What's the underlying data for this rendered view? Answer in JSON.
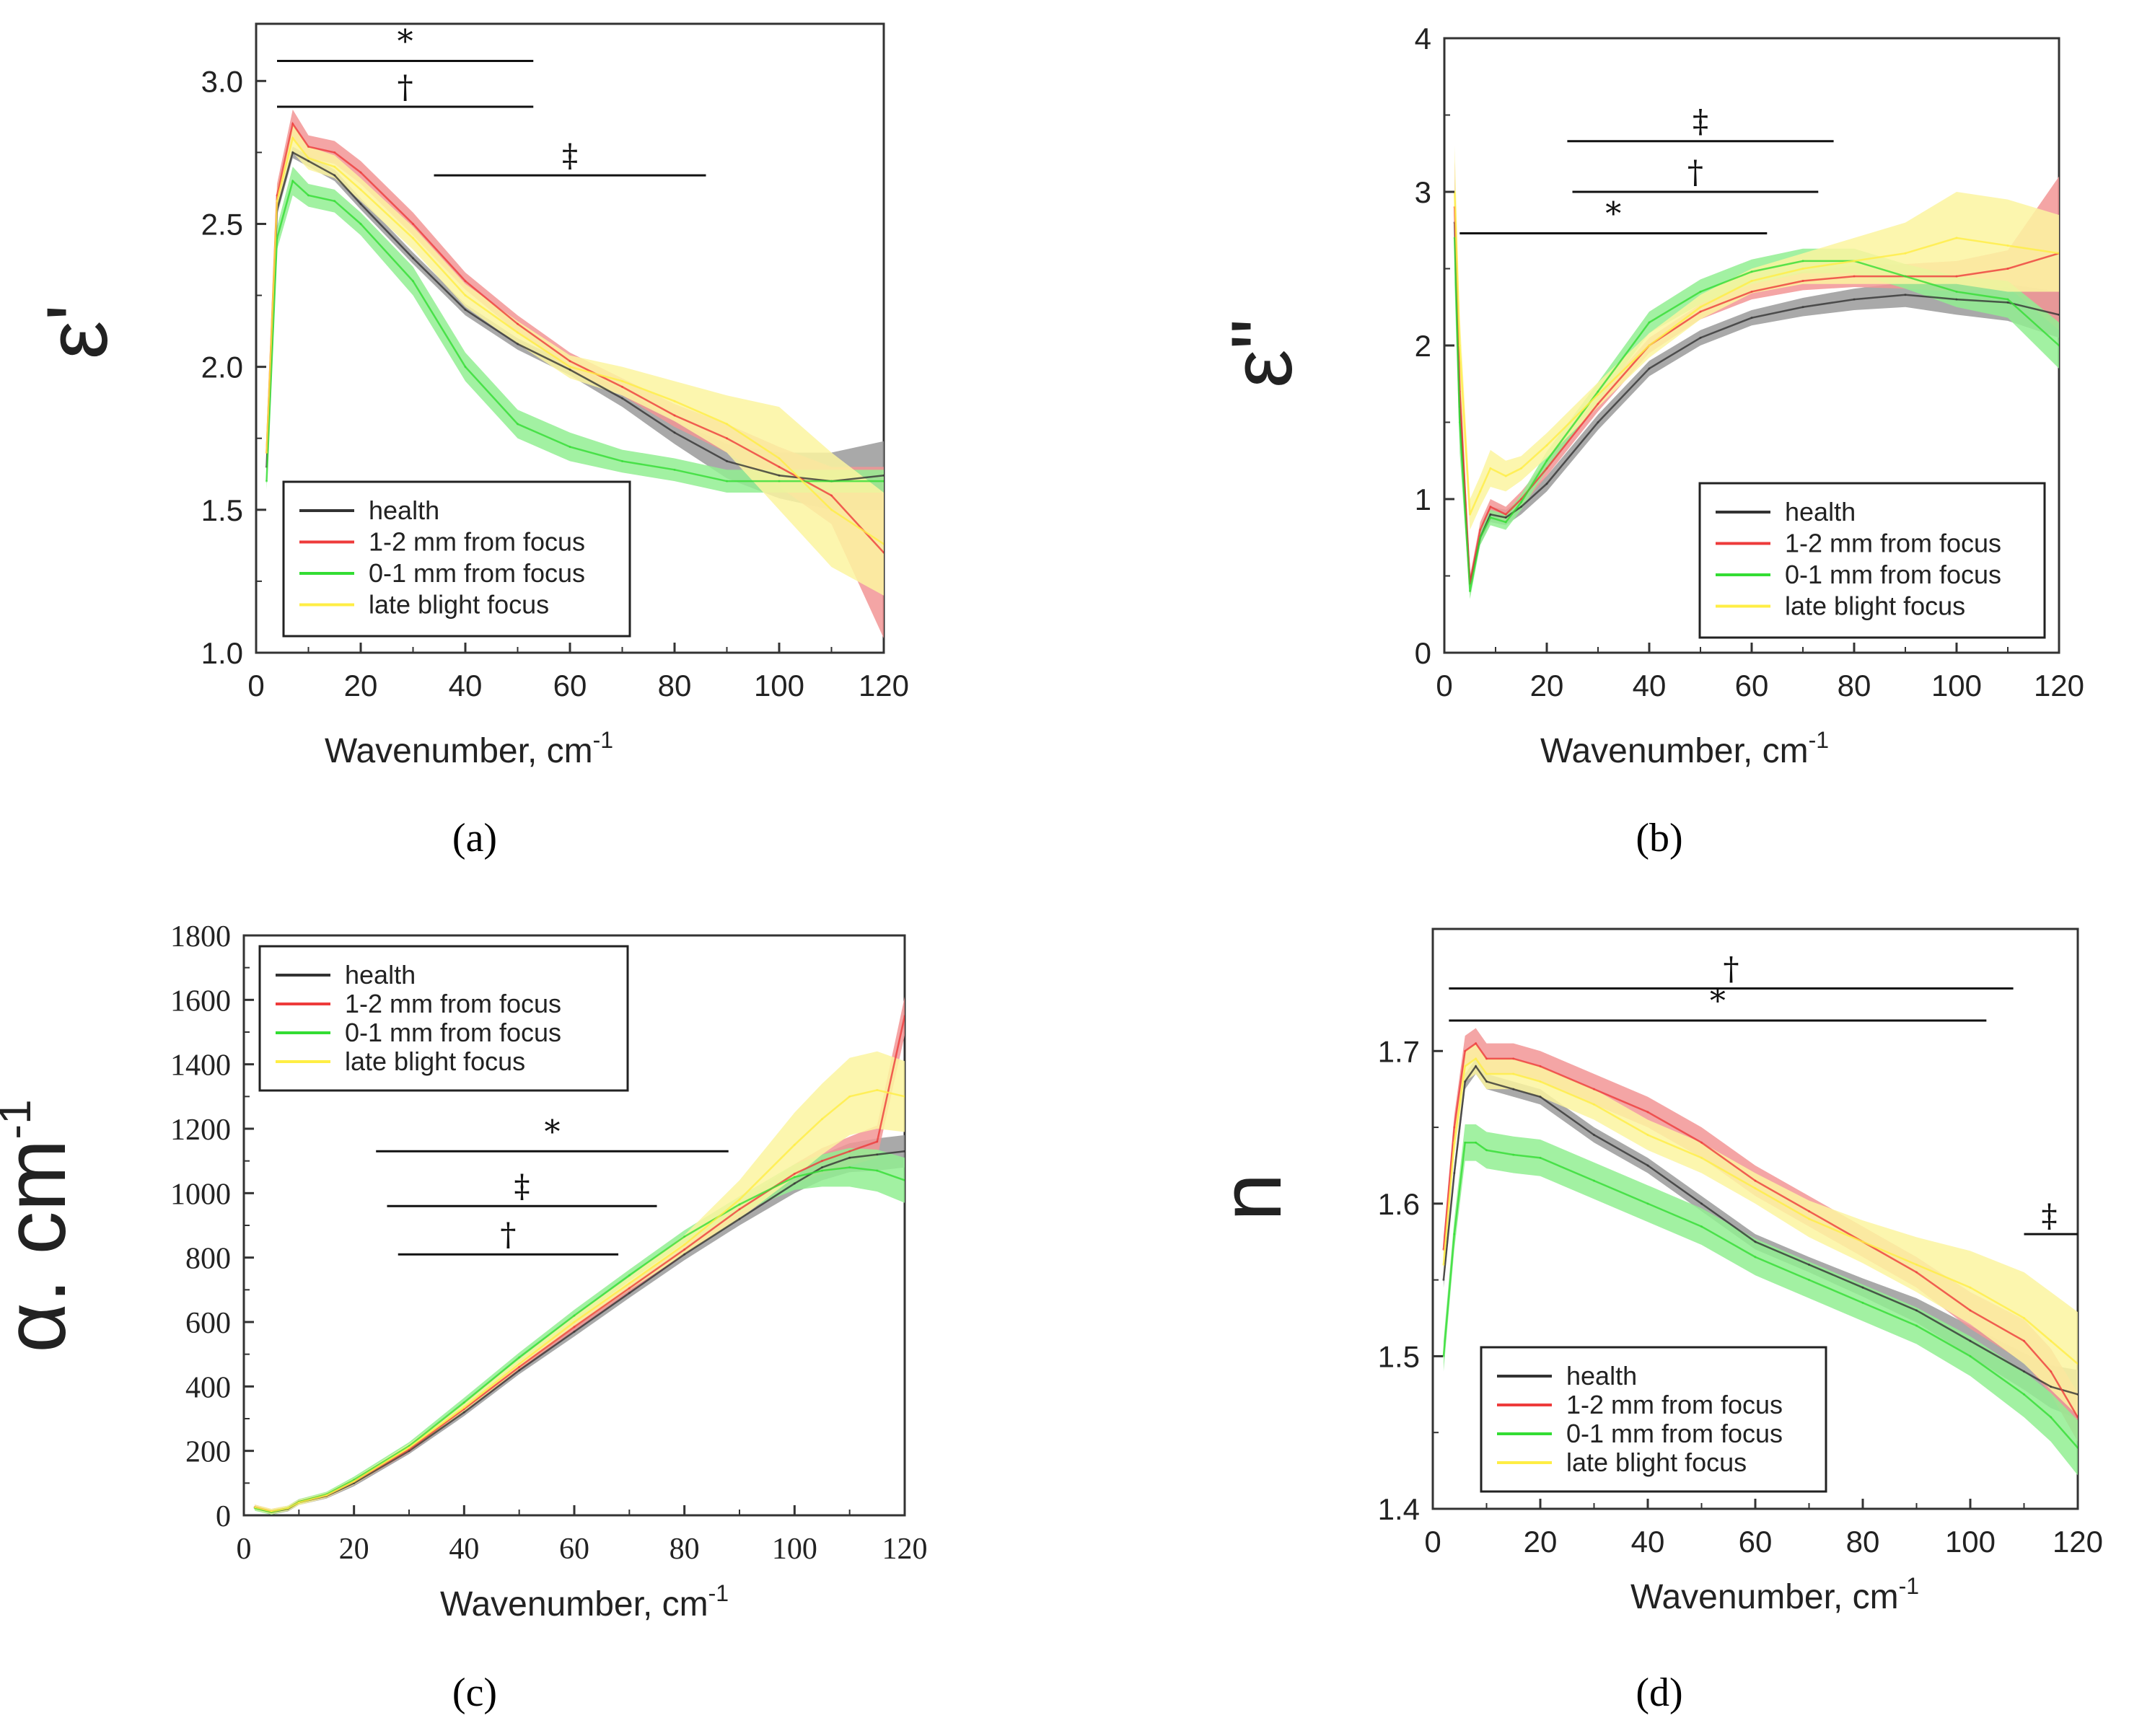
{
  "figure": {
    "panels": [
      "(a)",
      "(b)",
      "(c)",
      "(d)"
    ]
  },
  "colors": {
    "health": "#333333",
    "near": "#ee3b3b",
    "inner": "#33dd33",
    "focus": "#ffee44",
    "health_band": "#9a9a9a",
    "near_band": "#f29595",
    "inner_band": "#92ee92",
    "focus_band": "#fbf4a0"
  },
  "chart_data": [
    {
      "type": "line",
      "panel": "(a)",
      "title": "",
      "xlabel": "Wavenumber, cm",
      "xlabel_sup": "-1",
      "ylabel": "ε'",
      "xlim": [
        0,
        120
      ],
      "ylim": [
        1.0,
        3.2
      ],
      "xticks": [
        0,
        20,
        40,
        60,
        80,
        100,
        120
      ],
      "yticks": [
        1.0,
        1.5,
        2.0,
        2.5,
        3.0
      ],
      "ytick_labels": [
        "1.0",
        "1.5",
        "2.0",
        "2.5",
        "3.0"
      ],
      "legend_position": "bottom-left",
      "x": [
        2,
        4,
        7,
        10,
        15,
        20,
        30,
        40,
        50,
        60,
        70,
        80,
        90,
        100,
        110,
        120
      ],
      "series": [
        {
          "name": "health",
          "color_key": "health",
          "values": [
            1.65,
            2.55,
            2.75,
            2.72,
            2.67,
            2.57,
            2.38,
            2.2,
            2.08,
            1.99,
            1.89,
            1.77,
            1.67,
            1.62,
            1.6,
            1.62
          ],
          "band": [
            0.02,
            0.02,
            0.02,
            0.02,
            0.02,
            0.02,
            0.02,
            0.02,
            0.02,
            0.02,
            0.03,
            0.04,
            0.06,
            0.08,
            0.1,
            0.12
          ]
        },
        {
          "name": "1-2 mm from focus",
          "color_key": "near",
          "values": [
            1.7,
            2.6,
            2.85,
            2.77,
            2.75,
            2.68,
            2.5,
            2.3,
            2.15,
            2.02,
            1.93,
            1.83,
            1.75,
            1.65,
            1.55,
            1.35
          ],
          "band": [
            0.03,
            0.04,
            0.05,
            0.04,
            0.04,
            0.04,
            0.04,
            0.03,
            0.03,
            0.03,
            0.03,
            0.04,
            0.05,
            0.07,
            0.1,
            0.3
          ]
        },
        {
          "name": "0-1 mm from focus",
          "color_key": "inner",
          "values": [
            1.6,
            2.45,
            2.65,
            2.6,
            2.58,
            2.5,
            2.3,
            2.0,
            1.8,
            1.72,
            1.67,
            1.64,
            1.6,
            1.6,
            1.6,
            1.6
          ],
          "band": [
            0.03,
            0.04,
            0.05,
            0.04,
            0.04,
            0.04,
            0.05,
            0.05,
            0.05,
            0.05,
            0.04,
            0.04,
            0.04,
            0.04,
            0.04,
            0.04
          ]
        },
        {
          "name": "late blight focus",
          "color_key": "focus",
          "values": [
            1.7,
            2.58,
            2.8,
            2.73,
            2.7,
            2.62,
            2.45,
            2.25,
            2.12,
            2.0,
            1.95,
            1.88,
            1.8,
            1.68,
            1.5,
            1.38
          ],
          "band": [
            0.03,
            0.04,
            0.05,
            0.04,
            0.04,
            0.04,
            0.04,
            0.04,
            0.04,
            0.04,
            0.05,
            0.07,
            0.1,
            0.18,
            0.2,
            0.18
          ]
        }
      ],
      "significance": [
        {
          "symbol": "*",
          "x1": 4,
          "x2": 53,
          "y": 3.07
        },
        {
          "symbol": "†",
          "x1": 4,
          "x2": 53,
          "y": 2.91
        },
        {
          "symbol": "‡",
          "x1": 34,
          "x2": 86,
          "y": 2.67
        }
      ]
    },
    {
      "type": "line",
      "panel": "(b)",
      "title": "",
      "xlabel": "Wavenumber, cm",
      "xlabel_sup": "-1",
      "ylabel": "ε\"",
      "xlim": [
        0,
        120
      ],
      "ylim": [
        0,
        4
      ],
      "xticks": [
        0,
        20,
        40,
        60,
        80,
        100,
        120
      ],
      "yticks": [
        0,
        1,
        2,
        3,
        4
      ],
      "ytick_labels": [
        "0",
        "1",
        "2",
        "3",
        "4"
      ],
      "legend_position": "bottom-right",
      "x": [
        2,
        3,
        5,
        7,
        9,
        12,
        15,
        20,
        30,
        40,
        50,
        60,
        70,
        80,
        90,
        100,
        110,
        120
      ],
      "series": [
        {
          "name": "health",
          "color_key": "health",
          "values": [
            2.8,
            1.6,
            0.45,
            0.75,
            0.9,
            0.88,
            0.95,
            1.1,
            1.5,
            1.85,
            2.05,
            2.18,
            2.25,
            2.3,
            2.33,
            2.3,
            2.28,
            2.2
          ],
          "band": [
            0.3,
            0.2,
            0.05,
            0.05,
            0.05,
            0.05,
            0.05,
            0.05,
            0.05,
            0.05,
            0.05,
            0.05,
            0.06,
            0.07,
            0.08,
            0.1,
            0.12,
            0.15
          ]
        },
        {
          "name": "1-2 mm from focus",
          "color_key": "near",
          "values": [
            2.9,
            1.7,
            0.45,
            0.8,
            0.95,
            0.9,
            1.0,
            1.2,
            1.62,
            2.0,
            2.22,
            2.35,
            2.42,
            2.45,
            2.45,
            2.45,
            2.5,
            2.6
          ],
          "band": [
            0.3,
            0.2,
            0.05,
            0.05,
            0.05,
            0.05,
            0.05,
            0.05,
            0.05,
            0.05,
            0.05,
            0.05,
            0.06,
            0.07,
            0.08,
            0.1,
            0.12,
            0.5
          ]
        },
        {
          "name": "0-1 mm from focus",
          "color_key": "inner",
          "values": [
            2.7,
            1.5,
            0.4,
            0.75,
            0.88,
            0.85,
            0.98,
            1.25,
            1.7,
            2.15,
            2.35,
            2.48,
            2.55,
            2.55,
            2.45,
            2.35,
            2.3,
            2.0
          ],
          "band": [
            0.3,
            0.2,
            0.05,
            0.05,
            0.05,
            0.05,
            0.05,
            0.06,
            0.06,
            0.07,
            0.08,
            0.08,
            0.08,
            0.08,
            0.08,
            0.1,
            0.12,
            0.15
          ]
        },
        {
          "name": "late blight focus",
          "color_key": "focus",
          "values": [
            3.0,
            2.0,
            0.9,
            1.05,
            1.2,
            1.15,
            1.2,
            1.35,
            1.68,
            2.0,
            2.25,
            2.42,
            2.5,
            2.55,
            2.6,
            2.7,
            2.65,
            2.6
          ],
          "band": [
            0.3,
            0.2,
            0.1,
            0.1,
            0.12,
            0.1,
            0.08,
            0.08,
            0.08,
            0.08,
            0.08,
            0.08,
            0.1,
            0.15,
            0.2,
            0.3,
            0.3,
            0.25
          ]
        }
      ],
      "significance": [
        {
          "symbol": "‡",
          "x1": 24,
          "x2": 76,
          "y": 3.33
        },
        {
          "symbol": "†",
          "x1": 25,
          "x2": 73,
          "y": 3.0
        },
        {
          "symbol": "*",
          "x1": 3,
          "x2": 63,
          "y": 2.73
        }
      ]
    },
    {
      "type": "line",
      "panel": "(c)",
      "title": "",
      "xlabel": "Wavenumber, cm",
      "xlabel_sup": "-1",
      "ylabel": "α. cm",
      "ylabel_sup": "-1",
      "xlim": [
        0,
        120
      ],
      "ylim": [
        0,
        1800
      ],
      "xticks": [
        0,
        20,
        40,
        60,
        80,
        100,
        120
      ],
      "yticks": [
        0,
        200,
        400,
        600,
        800,
        1000,
        1200,
        1400,
        1600,
        1800
      ],
      "ytick_labels": [
        "0",
        "200",
        "400",
        "600",
        "800",
        "1000",
        "1200",
        "1400",
        "1600",
        "1800"
      ],
      "legend_position": "top-left",
      "x": [
        2,
        5,
        8,
        10,
        15,
        20,
        30,
        40,
        50,
        60,
        70,
        80,
        90,
        100,
        105,
        110,
        115,
        120
      ],
      "series": [
        {
          "name": "health",
          "color_key": "health",
          "values": [
            25,
            10,
            20,
            40,
            60,
            100,
            200,
            320,
            450,
            570,
            690,
            810,
            920,
            1030,
            1080,
            1110,
            1120,
            1130
          ],
          "band": [
            8,
            8,
            8,
            8,
            8,
            10,
            10,
            12,
            12,
            15,
            15,
            18,
            20,
            30,
            40,
            45,
            50,
            50
          ]
        },
        {
          "name": "1-2 mm from focus",
          "color_key": "near",
          "values": [
            25,
            12,
            22,
            42,
            62,
            105,
            205,
            330,
            460,
            585,
            705,
            825,
            950,
            1060,
            1100,
            1130,
            1160,
            1550
          ],
          "band": [
            8,
            8,
            8,
            8,
            8,
            10,
            10,
            12,
            12,
            15,
            15,
            18,
            20,
            30,
            40,
            45,
            50,
            60
          ]
        },
        {
          "name": "0-1 mm from focus",
          "color_key": "inner",
          "values": [
            22,
            10,
            22,
            42,
            65,
            110,
            215,
            350,
            490,
            620,
            745,
            865,
            965,
            1050,
            1070,
            1080,
            1070,
            1040
          ],
          "band": [
            8,
            8,
            8,
            8,
            8,
            10,
            12,
            15,
            15,
            18,
            18,
            20,
            25,
            40,
            50,
            60,
            65,
            70
          ]
        },
        {
          "name": "late blight focus",
          "color_key": "focus",
          "values": [
            25,
            12,
            22,
            40,
            62,
            105,
            210,
            335,
            470,
            600,
            720,
            840,
            980,
            1150,
            1230,
            1300,
            1320,
            1300
          ],
          "band": [
            8,
            8,
            8,
            8,
            8,
            10,
            12,
            15,
            15,
            18,
            20,
            30,
            60,
            100,
            110,
            120,
            120,
            110
          ]
        }
      ],
      "significance": [
        {
          "symbol": "*",
          "x1": 24,
          "x2": 88,
          "y": 1130
        },
        {
          "symbol": "‡",
          "x1": 26,
          "x2": 75,
          "y": 960
        },
        {
          "symbol": "†",
          "x1": 28,
          "x2": 68,
          "y": 810
        }
      ]
    },
    {
      "type": "line",
      "panel": "(d)",
      "title": "",
      "xlabel": "Wavenumber, cm",
      "xlabel_sup": "-1",
      "ylabel": "n",
      "xlim": [
        0,
        120
      ],
      "ylim": [
        1.4,
        1.78
      ],
      "xticks": [
        0,
        20,
        40,
        60,
        80,
        100,
        120
      ],
      "yticks": [
        1.4,
        1.5,
        1.6,
        1.7
      ],
      "ytick_labels": [
        "1.4",
        "1.5",
        "1.6",
        "1.7"
      ],
      "legend_position": "bottom-left",
      "x": [
        2,
        4,
        6,
        8,
        10,
        15,
        20,
        30,
        40,
        50,
        60,
        70,
        80,
        90,
        100,
        110,
        115,
        120
      ],
      "series": [
        {
          "name": "health",
          "color_key": "health",
          "values": [
            1.55,
            1.62,
            1.68,
            1.69,
            1.68,
            1.675,
            1.67,
            1.645,
            1.625,
            1.6,
            1.575,
            1.56,
            1.545,
            1.53,
            1.51,
            1.49,
            1.48,
            1.475
          ],
          "band": [
            0.005,
            0.005,
            0.005,
            0.005,
            0.005,
            0.005,
            0.005,
            0.005,
            0.005,
            0.005,
            0.005,
            0.005,
            0.006,
            0.008,
            0.01,
            0.012,
            0.014,
            0.016
          ]
        },
        {
          "name": "1-2 mm from focus",
          "color_key": "near",
          "values": [
            1.57,
            1.65,
            1.7,
            1.705,
            1.695,
            1.695,
            1.69,
            1.675,
            1.66,
            1.64,
            1.615,
            1.595,
            1.575,
            1.555,
            1.53,
            1.51,
            1.49,
            1.46
          ],
          "band": [
            0.008,
            0.008,
            0.01,
            0.01,
            0.01,
            0.01,
            0.01,
            0.01,
            0.01,
            0.01,
            0.01,
            0.01,
            0.01,
            0.01,
            0.012,
            0.014,
            0.015,
            0.016
          ]
        },
        {
          "name": "0-1 mm from focus",
          "color_key": "inner",
          "values": [
            1.5,
            1.58,
            1.64,
            1.64,
            1.635,
            1.632,
            1.63,
            1.615,
            1.6,
            1.585,
            1.565,
            1.55,
            1.535,
            1.52,
            1.5,
            1.475,
            1.46,
            1.44
          ],
          "band": [
            0.01,
            0.01,
            0.012,
            0.012,
            0.012,
            0.012,
            0.012,
            0.012,
            0.012,
            0.012,
            0.012,
            0.012,
            0.012,
            0.012,
            0.013,
            0.015,
            0.016,
            0.018
          ]
        },
        {
          "name": "late blight focus",
          "color_key": "focus",
          "values": [
            1.56,
            1.64,
            1.69,
            1.695,
            1.685,
            1.685,
            1.68,
            1.665,
            1.645,
            1.63,
            1.61,
            1.59,
            1.575,
            1.56,
            1.545,
            1.525,
            1.51,
            1.495
          ],
          "band": [
            0.008,
            0.008,
            0.01,
            0.01,
            0.01,
            0.01,
            0.01,
            0.01,
            0.01,
            0.01,
            0.01,
            0.012,
            0.014,
            0.018,
            0.024,
            0.03,
            0.032,
            0.034
          ]
        }
      ],
      "significance": [
        {
          "symbol": "†",
          "x1": 3,
          "x2": 108,
          "y": 1.741
        },
        {
          "symbol": "*",
          "x1": 3,
          "x2": 103,
          "y": 1.72
        },
        {
          "symbol": "‡",
          "x1": 110,
          "x2": 120,
          "y": 1.58
        }
      ]
    }
  ]
}
